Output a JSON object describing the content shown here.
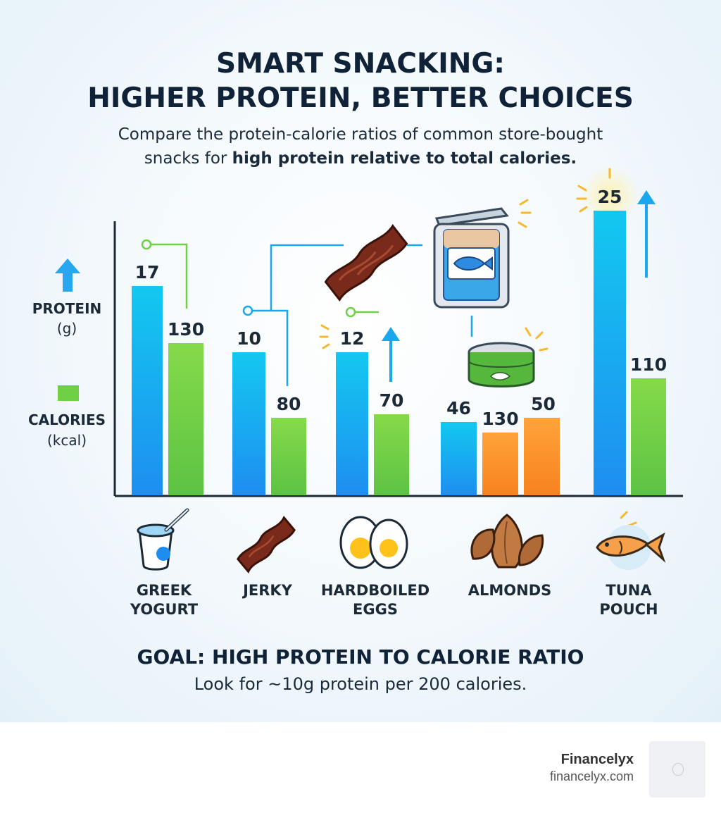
{
  "title_lines": [
    "SMART SNACKING:",
    "HIGHER PROTEIN, BETTER CHOICES"
  ],
  "subtitle_line1": "Compare the protein-calorie ratios of common store-bought",
  "subtitle_line2_plain": "snacks for ",
  "subtitle_line2_bold": "high protein relative to total calories.",
  "legend": {
    "protein_label": "PROTEIN",
    "protein_unit": "(g)",
    "calories_label": "CALORIES",
    "calories_unit": "(kcal)"
  },
  "colors": {
    "protein": "#19a7ee",
    "calories": "#6fcf45",
    "almond_calories": "#fb8f2d"
  },
  "categories": [
    "GREEK\nYOGURT",
    "JERKY",
    "HARDBOILED\nEGGS",
    "ALMONDS",
    "TUNA\nPOUCH"
  ],
  "category_icons": [
    "yogurt-cup-icon",
    "jerky-icon",
    "boiled-eggs-icon",
    "almonds-icon",
    "fish-icon"
  ],
  "chart_data": {
    "type": "bar",
    "note_scale": "protein and calorie bars drawn on visual scale; values from data labels",
    "categories": [
      "GREEK YOGURT",
      "JERKY",
      "HARDBOILED EGGS",
      "ALMONDS",
      "TUNA POUCH"
    ],
    "series": [
      {
        "name": "PROTEIN (g)",
        "values": [
          17,
          10,
          12,
          46,
          25
        ]
      },
      {
        "name": "CALORIES (kcal)",
        "values": [
          130,
          80,
          70,
          130,
          110
        ]
      }
    ],
    "extra_bars": [
      {
        "category": "ALMONDS",
        "value": 50
      }
    ],
    "grid": false,
    "legend_position": "left"
  },
  "goal": {
    "heading": "GOAL: HIGH PROTEIN TO CALORIE RATIO",
    "text": "Look for ~10g protein per 200 calories."
  },
  "footer": {
    "brand": "Financelyx",
    "url": "financelyx.com"
  }
}
